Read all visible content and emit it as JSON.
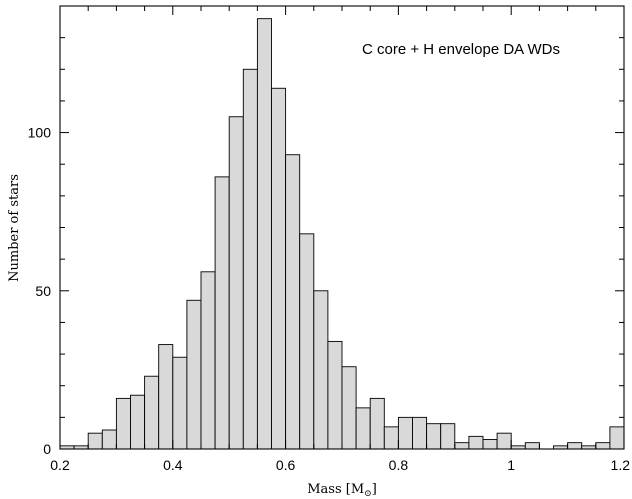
{
  "chart_data": {
    "type": "bar",
    "title": "",
    "annotation": "C core + H envelope DA WDs",
    "xlabel": "Mass [M",
    "xlabel_sub": "⊙",
    "xlabel_close": "]",
    "ylabel": "Number of stars",
    "xlim": [
      0.2,
      1.2
    ],
    "ylim": [
      0,
      140
    ],
    "bin_width": 0.025,
    "x_ticks": [
      0.2,
      0.4,
      0.6,
      0.8,
      1,
      1.2
    ],
    "x_tick_labels": [
      "0.2",
      "0.4",
      "0.6",
      "0.8",
      "1",
      "1.2"
    ],
    "y_ticks": [
      0,
      50,
      100
    ],
    "y_tick_labels": [
      "0",
      "50",
      "100"
    ],
    "grid": false,
    "x": [
      0.2,
      0.225,
      0.25,
      0.275,
      0.3,
      0.325,
      0.35,
      0.375,
      0.4,
      0.425,
      0.45,
      0.475,
      0.5,
      0.525,
      0.55,
      0.575,
      0.6,
      0.625,
      0.65,
      0.675,
      0.7,
      0.725,
      0.75,
      0.775,
      0.8,
      0.825,
      0.85,
      0.875,
      0.9,
      0.925,
      0.95,
      0.975,
      1.0,
      1.025,
      1.05,
      1.075,
      1.1,
      1.125,
      1.15,
      1.175
    ],
    "values": [
      1,
      1,
      5,
      6,
      16,
      17,
      23,
      33,
      29,
      47,
      56,
      86,
      105,
      120,
      136,
      114,
      93,
      68,
      50,
      34,
      26,
      13,
      16,
      7,
      10,
      10,
      8,
      8,
      2,
      4,
      3,
      5,
      1,
      2,
      0,
      1,
      2,
      1,
      2,
      7
    ]
  }
}
